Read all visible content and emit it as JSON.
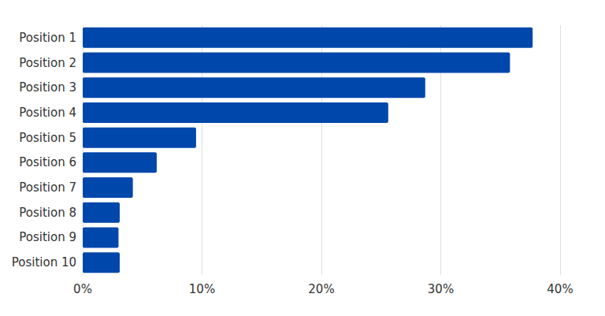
{
  "chart_data": {
    "type": "bar",
    "orientation": "horizontal",
    "categories": [
      "Position 1",
      "Position 2",
      "Position 3",
      "Position 4",
      "Position 5",
      "Position 6",
      "Position 7",
      "Position 8",
      "Position 9",
      "Position 10"
    ],
    "values": [
      37.7,
      35.8,
      28.7,
      25.6,
      9.5,
      6.2,
      4.2,
      3.1,
      3.0,
      3.1
    ],
    "color": "#0047ab",
    "xlim": [
      0,
      40
    ],
    "xticks": [
      {
        "value": 0,
        "label": "0%"
      },
      {
        "value": 10,
        "label": "10%"
      },
      {
        "value": 20,
        "label": "20%"
      },
      {
        "value": 30,
        "label": "30%"
      },
      {
        "value": 40,
        "label": "40%"
      }
    ],
    "grid": true
  }
}
